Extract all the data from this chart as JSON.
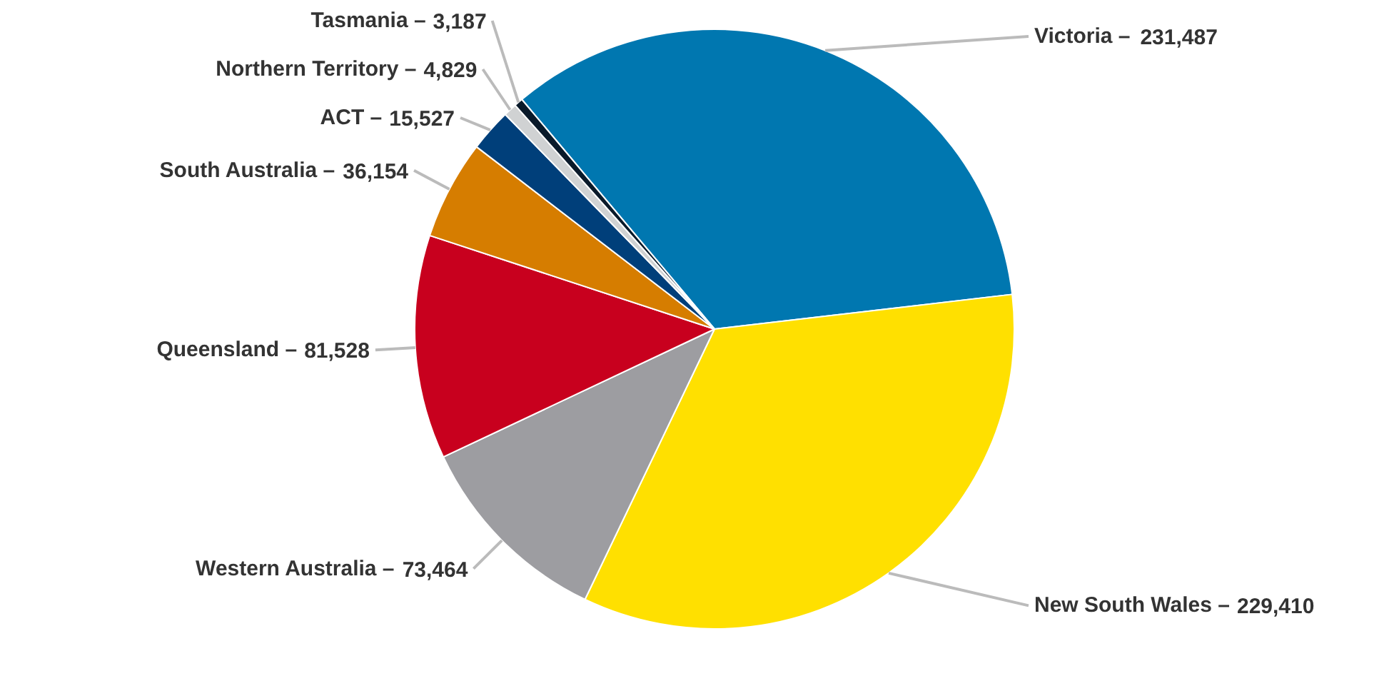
{
  "chart_data": {
    "type": "pie",
    "value_labels": [
      "231,487",
      "229,410",
      "73,464",
      "81,528",
      "36,154",
      "15,527",
      "4,829",
      "3,187"
    ],
    "categories": [
      "Victoria –",
      "New South Wales –",
      "Western Australia –",
      "Queensland –",
      "South Australia –",
      "ACT –",
      "Northern Territory –",
      "Tasmania –"
    ],
    "values": [
      231487,
      229410,
      73464,
      81528,
      36154,
      15527,
      4829,
      3187
    ],
    "colors": [
      "#0077b0",
      "#ffe000",
      "#9d9da1",
      "#c8001e",
      "#d67d00",
      "#003f7a",
      "#d0d2d3",
      "#0a1a2a"
    ]
  }
}
